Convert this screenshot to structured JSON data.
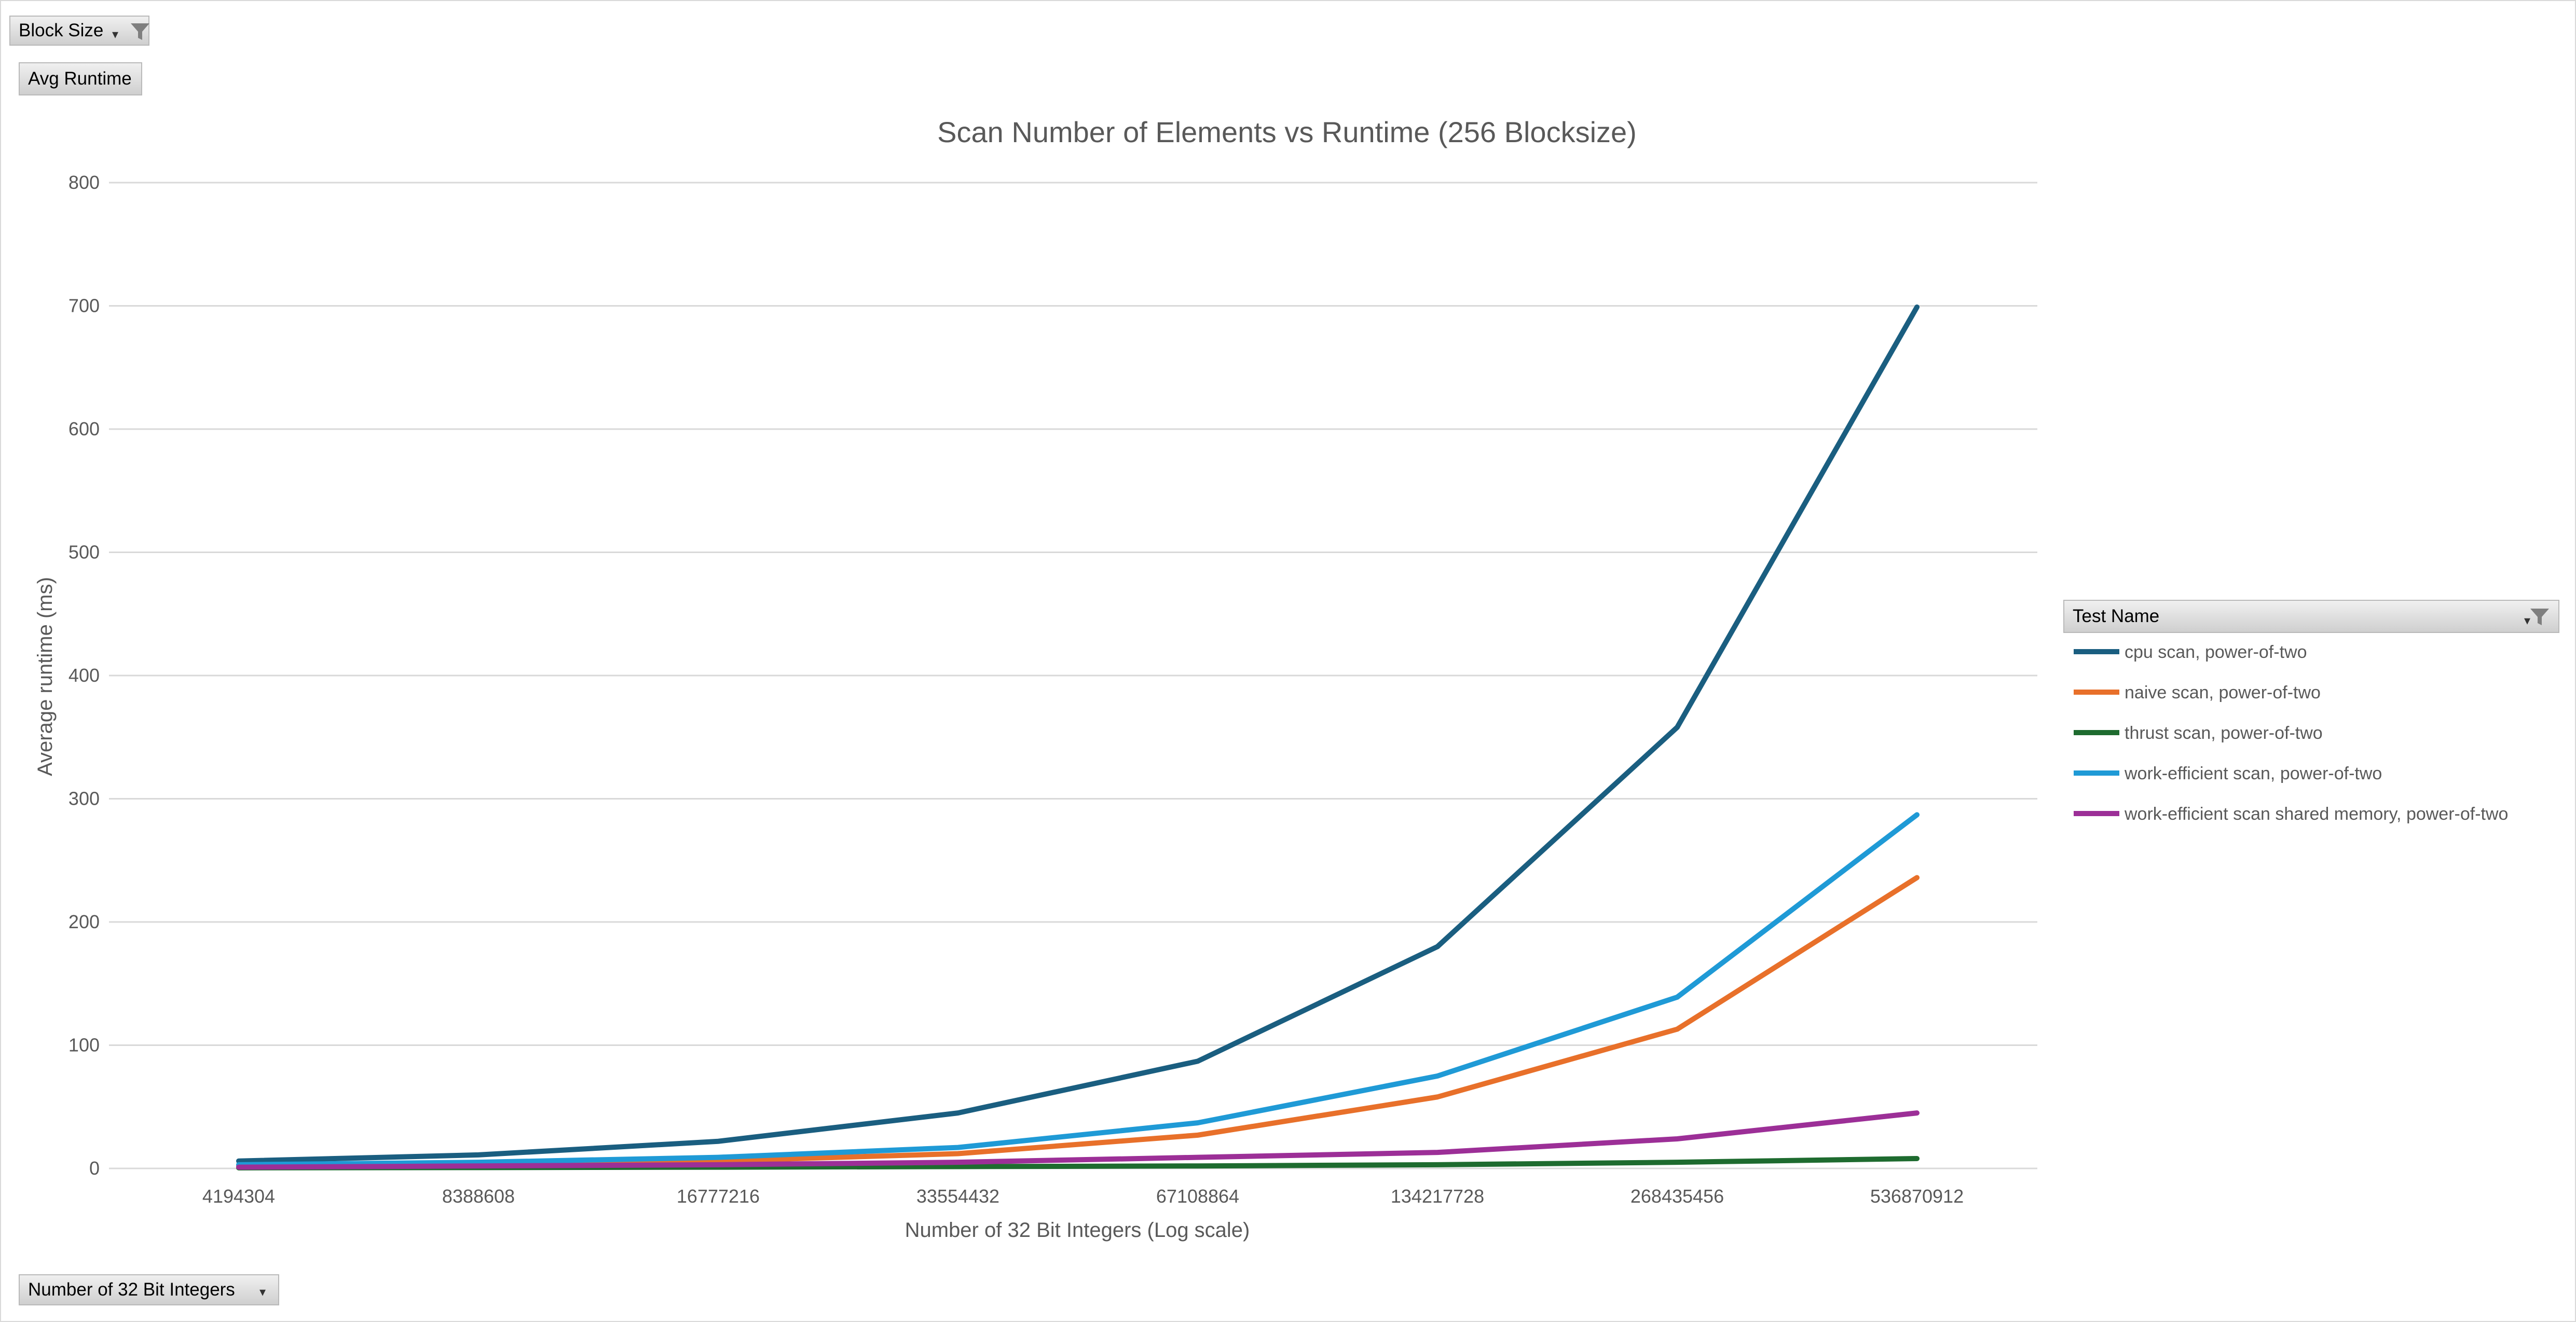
{
  "pivot_buttons": {
    "block_size": "Block Size",
    "avg_runtime": "Avg Runtime",
    "x_field": "Number of 32 Bit Integers",
    "legend_field": "Test Name"
  },
  "icons": {
    "filter": "filter-funnel-icon",
    "dropdown": "dropdown-arrow-icon"
  },
  "chart_data": {
    "type": "line",
    "title": "Scan Number of Elements vs Runtime (256 Blocksize)",
    "xlabel": "Number of 32 Bit Integers (Log scale)",
    "ylabel": "Average runtime (ms)",
    "categories": [
      "4194304",
      "8388608",
      "16777216",
      "33554432",
      "67108864",
      "134217728",
      "268435456",
      "536870912"
    ],
    "ylim": [
      0,
      800
    ],
    "yticks": [
      0,
      100,
      200,
      300,
      400,
      500,
      600,
      700,
      800
    ],
    "grid": true,
    "legend_position": "right",
    "series": [
      {
        "name": "cpu scan, power-of-two",
        "color": "#1a5e80",
        "values": [
          6,
          11,
          22,
          45,
          87,
          180,
          358,
          699
        ]
      },
      {
        "name": "naive scan, power-of-two",
        "color": "#e8702a",
        "values": [
          2,
          3,
          6,
          12,
          27,
          58,
          113,
          236
        ]
      },
      {
        "name": "thrust scan, power-of-two",
        "color": "#1e6b2f",
        "values": [
          0.5,
          0.7,
          1,
          1.5,
          2,
          3,
          5,
          8
        ]
      },
      {
        "name": "work-efficient scan, power-of-two",
        "color": "#1f9ad6",
        "values": [
          3,
          5,
          9,
          17,
          37,
          75,
          139,
          287
        ]
      },
      {
        "name": "work-efficient scan shared memory, power-of-two",
        "color": "#9c2f97",
        "values": [
          1,
          2,
          3,
          5,
          9,
          13,
          24,
          45
        ]
      }
    ]
  }
}
